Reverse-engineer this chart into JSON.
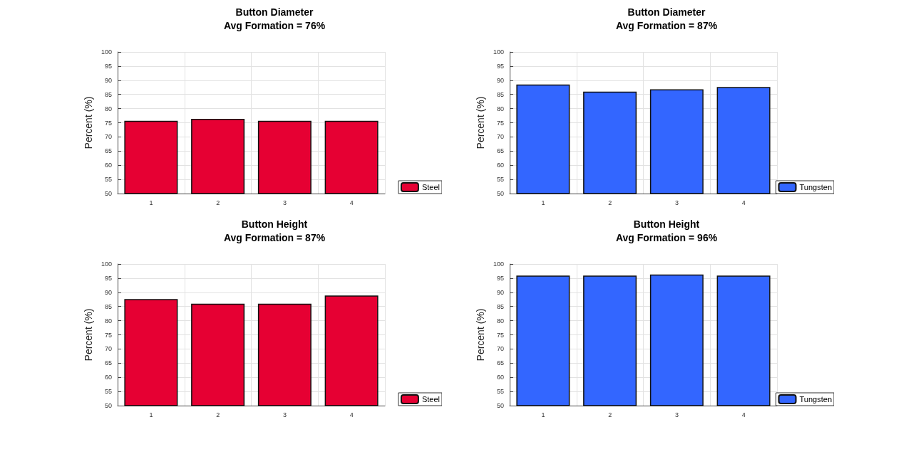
{
  "chart_data": [
    {
      "type": "bar",
      "title": "Button Diameter\nAvg Formation = 76%",
      "ylabel": "Percent (%)",
      "categories": [
        "1",
        "2",
        "3",
        "4"
      ],
      "series": [
        {
          "name": "Steel",
          "color": "#e60033",
          "values": [
            75.7,
            76.4,
            75.7,
            75.7
          ]
        }
      ],
      "ylim": [
        50,
        100
      ],
      "yticks": [
        50,
        55,
        60,
        65,
        70,
        75,
        80,
        85,
        90,
        95,
        100
      ],
      "grid": true,
      "legend": "bottom right"
    },
    {
      "type": "bar",
      "title": "Button Diameter\nAvg Formation = 87%",
      "ylabel": "Percent (%)",
      "categories": [
        "1",
        "2",
        "3",
        "4"
      ],
      "series": [
        {
          "name": "Tungsten",
          "color": "#3366ff",
          "values": [
            88.5,
            86.0,
            86.8,
            87.6
          ]
        }
      ],
      "ylim": [
        50,
        100
      ],
      "yticks": [
        50,
        55,
        60,
        65,
        70,
        75,
        80,
        85,
        90,
        95,
        100
      ],
      "grid": true,
      "legend": "bottom right"
    },
    {
      "type": "bar",
      "title": "Button Height\nAvg Formation = 87%",
      "ylabel": "Percent (%)",
      "categories": [
        "1",
        "2",
        "3",
        "4"
      ],
      "series": [
        {
          "name": "Steel",
          "color": "#e60033",
          "values": [
            87.6,
            86.0,
            86.0,
            88.9
          ]
        }
      ],
      "ylim": [
        50,
        100
      ],
      "yticks": [
        50,
        55,
        60,
        65,
        70,
        75,
        80,
        85,
        90,
        95,
        100
      ],
      "grid": true,
      "legend": "bottom right"
    },
    {
      "type": "bar",
      "title": "Button Height\nAvg Formation = 96%",
      "ylabel": "Percent (%)",
      "categories": [
        "1",
        "2",
        "3",
        "4"
      ],
      "series": [
        {
          "name": "Tungsten",
          "color": "#3366ff",
          "values": [
            95.9,
            95.9,
            96.3,
            95.9
          ]
        }
      ],
      "ylim": [
        50,
        100
      ],
      "yticks": [
        50,
        55,
        60,
        65,
        70,
        75,
        80,
        85,
        90,
        95,
        100
      ],
      "grid": true,
      "legend": "bottom right"
    }
  ]
}
